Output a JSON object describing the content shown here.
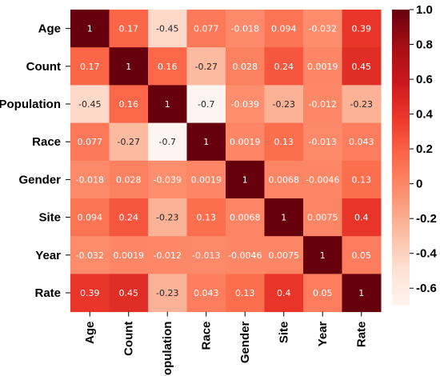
{
  "chart_data": {
    "type": "heatmap",
    "title": "",
    "xlabel": "",
    "ylabel": "",
    "rows": [
      "Age",
      "Count",
      "Population",
      "Race",
      "Gender",
      "Site",
      "Year",
      "Rate"
    ],
    "cols": [
      "Age",
      "Count",
      "Population",
      "Race",
      "Gender",
      "Site",
      "Year",
      "Rate"
    ],
    "values": [
      [
        1,
        0.17,
        -0.45,
        0.077,
        -0.018,
        0.094,
        -0.032,
        0.39
      ],
      [
        0.17,
        1,
        0.16,
        -0.27,
        0.028,
        0.24,
        0.0019,
        0.45
      ],
      [
        -0.45,
        0.16,
        1,
        -0.7,
        -0.039,
        -0.23,
        -0.012,
        -0.23
      ],
      [
        0.077,
        -0.27,
        -0.7,
        1,
        0.0019,
        0.13,
        -0.013,
        0.043
      ],
      [
        -0.018,
        0.028,
        -0.039,
        0.0019,
        1,
        0.0068,
        -0.0046,
        0.13
      ],
      [
        0.094,
        0.24,
        -0.23,
        0.13,
        0.0068,
        1,
        0.0075,
        0.4
      ],
      [
        -0.032,
        0.0019,
        -0.012,
        -0.013,
        -0.0046,
        0.0075,
        1,
        0.05
      ],
      [
        0.39,
        0.45,
        -0.23,
        0.043,
        0.13,
        0.4,
        0.05,
        1
      ]
    ],
    "cell_labels": [
      [
        "1",
        "0.17",
        "-0.45",
        "0.077",
        "-0.018",
        "0.094",
        "-0.032",
        "0.39"
      ],
      [
        "0.17",
        "1",
        "0.16",
        "-0.27",
        "0.028",
        "0.24",
        "0.0019",
        "0.45"
      ],
      [
        "-0.45",
        "0.16",
        "1",
        "-0.7",
        "-0.039",
        "-0.23",
        "-0.012",
        "-0.23"
      ],
      [
        "0.077",
        "-0.27",
        "-0.7",
        "1",
        "0.0019",
        "0.13",
        "-0.013",
        "0.043"
      ],
      [
        "-0.018",
        "0.028",
        "-0.039",
        "0.0019",
        "1",
        "0.0068",
        "-0.0046",
        "0.13"
      ],
      [
        "0.094",
        "0.24",
        "-0.23",
        "0.13",
        "0.0068",
        "1",
        "0.0075",
        "0.4"
      ],
      [
        "-0.032",
        "0.0019",
        "-0.012",
        "-0.013",
        "-0.0046",
        "0.0075",
        "1",
        "0.05"
      ],
      [
        "0.39",
        "0.45",
        "-0.23",
        "0.043",
        "0.13",
        "0.4",
        "0.05",
        "1"
      ]
    ],
    "colorbar": {
      "range": [
        -0.7,
        1.0
      ],
      "ticks": [
        1.0,
        0.8,
        0.6,
        0.4,
        0.2,
        0,
        -0.2,
        -0.4,
        -0.6
      ],
      "tick_labels": [
        "1.0",
        "0.8",
        "0.6",
        "0.4",
        "0.2",
        "0",
        "-0.2",
        "-0.4",
        "-0.6"
      ],
      "colormap": "Reds",
      "colors": [
        "#fff5f0",
        "#fee0d2",
        "#fcbba1",
        "#fc9272",
        "#fb6a4a",
        "#ef3b2c",
        "#cb181d",
        "#a50f15",
        "#67000d"
      ]
    },
    "grid": false,
    "legend": "colorbar-right"
  }
}
